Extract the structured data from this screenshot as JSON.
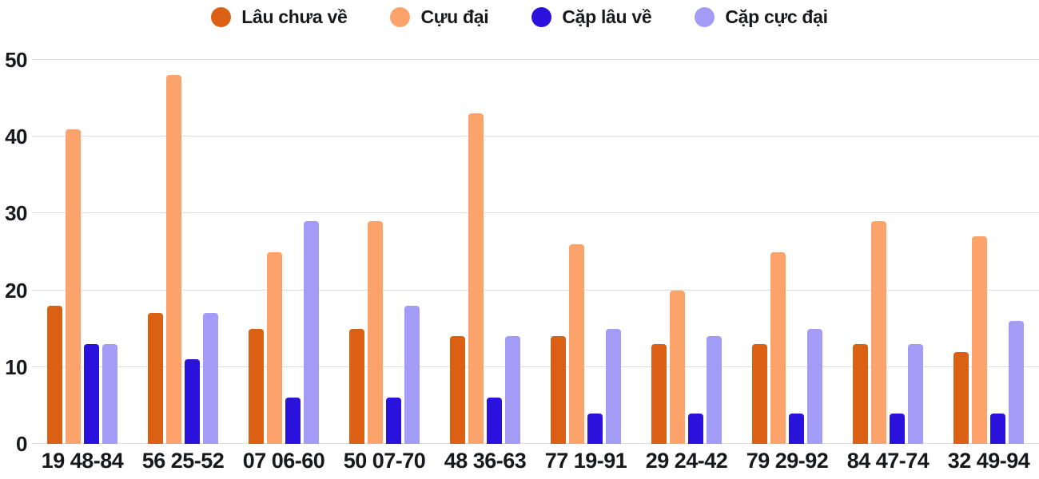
{
  "chart_data": {
    "type": "bar",
    "title": "",
    "xlabel": "",
    "ylabel": "",
    "categories": [
      "19 48-84",
      "56 25-52",
      "07 06-60",
      "50 07-70",
      "48 36-63",
      "77 19-91",
      "29 24-42",
      "79 29-92",
      "84 47-74",
      "32 49-94"
    ],
    "series": [
      {
        "name": "Lâu chưa về",
        "color": "#dc6014",
        "values": [
          18,
          17,
          15,
          15,
          14,
          14,
          13,
          13,
          13,
          12
        ]
      },
      {
        "name": "Cựu đại",
        "color": "#fca36c",
        "values": [
          41,
          48,
          25,
          29,
          43,
          26,
          20,
          25,
          29,
          27
        ]
      },
      {
        "name": "Cặp lâu về",
        "color": "#2912db",
        "values": [
          13,
          11,
          6,
          6,
          6,
          4,
          4,
          4,
          4,
          4
        ]
      },
      {
        "name": "Cặp cực đại",
        "color": "#a29cf7",
        "values": [
          13,
          17,
          29,
          18,
          14,
          15,
          14,
          15,
          13,
          16
        ]
      }
    ],
    "y_axis": {
      "min": 0,
      "max": 50,
      "ticks": [
        0,
        10,
        20,
        30,
        40,
        50
      ]
    },
    "grid": true,
    "legend_position": "top"
  },
  "colors": {
    "grid": "#dddddd",
    "text": "#17191c",
    "background": "#ffffff"
  }
}
